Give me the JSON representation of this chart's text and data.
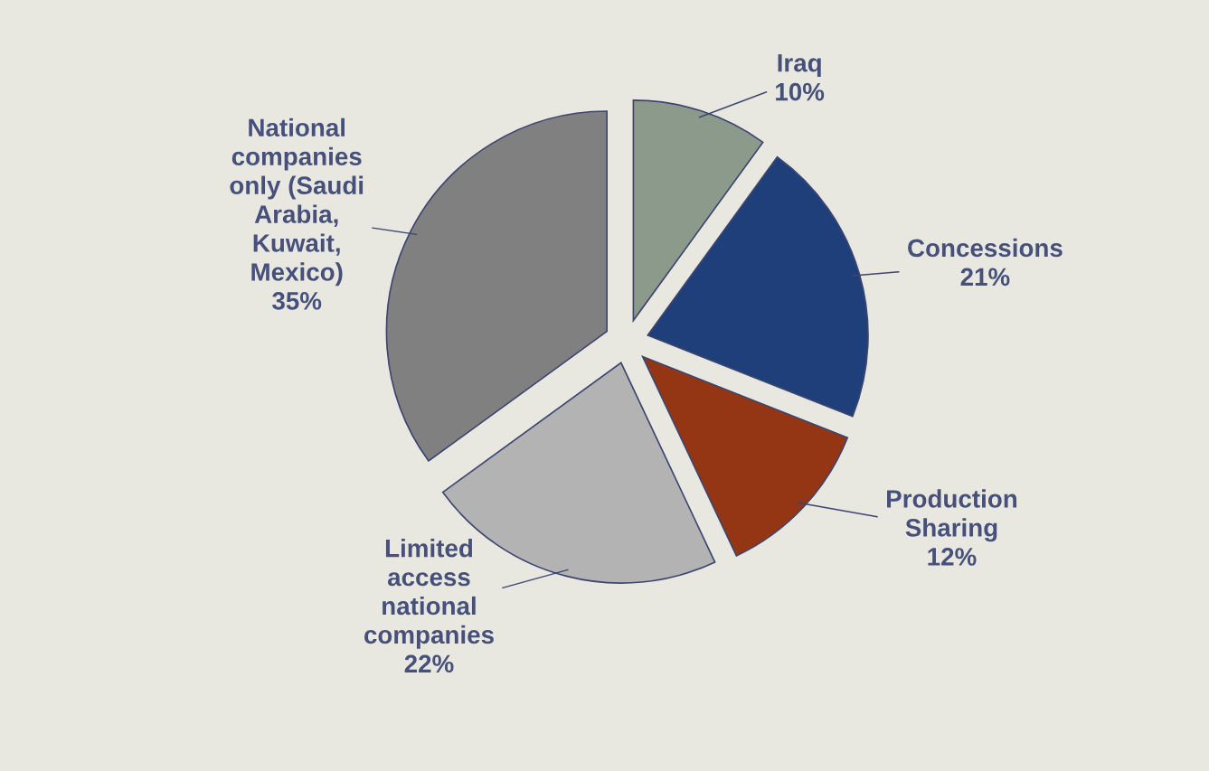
{
  "chart_data": {
    "type": "pie",
    "categories": [
      "Iraq",
      "Concessions",
      "Production\nSharing",
      "Limited\naccess\nnational\ncompanies",
      "National\ncompanies\nonly (Saudi\nArabia,\nKuwait,\nMexico)"
    ],
    "values": [
      10,
      21,
      12,
      22,
      35
    ],
    "value_labels": [
      "10%",
      "21%",
      "12%",
      "22%",
      "35%"
    ],
    "colors": [
      "#8c9a8c",
      "#1f3f7a",
      "#943514",
      "#b3b3b3",
      "#808080"
    ]
  }
}
